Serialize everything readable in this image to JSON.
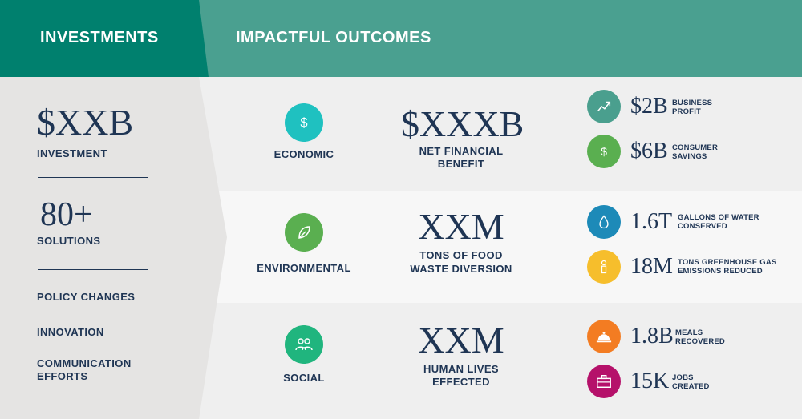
{
  "header": {
    "investments_title": "INVESTMENTS",
    "outcomes_title": "IMPACTFUL OUTCOMES"
  },
  "investments": {
    "amount": "$XXB",
    "amount_label": "INVESTMENT",
    "solutions_count": "80+",
    "solutions_label": "SOLUTIONS",
    "items": [
      "POLICY CHANGES",
      "INNOVATION",
      "COMMUNICATION EFFORTS"
    ]
  },
  "outcomes": [
    {
      "category": "ECONOMIC",
      "icon": "dollar-icon",
      "icon_color": "#1fc1c0",
      "value": "$XXXB",
      "value_label": "NET FINANCIAL BENEFIT",
      "stats": [
        {
          "value": "$2B",
          "label": "BUSINESS PROFIT",
          "icon": "trend-up-icon",
          "color": "#4a9f8e"
        },
        {
          "value": "$6B",
          "label": "CONSUMER SAVINGS",
          "icon": "dollar-icon",
          "color": "#5aaf50"
        }
      ]
    },
    {
      "category": "ENVIRONMENTAL",
      "icon": "leaf-icon",
      "icon_color": "#5aaf50",
      "value": "XXM",
      "value_label": "TONS OF FOOD WASTE DIVERSION",
      "stats": [
        {
          "value": "1.6T",
          "label": "GALLONS OF WATER CONSERVED",
          "icon": "water-drop-icon",
          "color": "#1d8ab8"
        },
        {
          "value": "18M",
          "label": "TONS GREENHOUSE GAS EMISSIONS REDUCED",
          "icon": "smokestack-icon",
          "color": "#f6be2c"
        }
      ]
    },
    {
      "category": "SOCIAL",
      "icon": "people-icon",
      "icon_color": "#20b57e",
      "value": "XXM",
      "value_label": "HUMAN LIVES EFFECTED",
      "stats": [
        {
          "value": "1.8B",
          "label": "MEALS RECOVERED",
          "icon": "food-cloche-icon",
          "color": "#f37c22"
        },
        {
          "value": "15K",
          "label": "JOBS CREATED",
          "icon": "briefcase-icon",
          "color": "#b5116a"
        }
      ]
    }
  ]
}
